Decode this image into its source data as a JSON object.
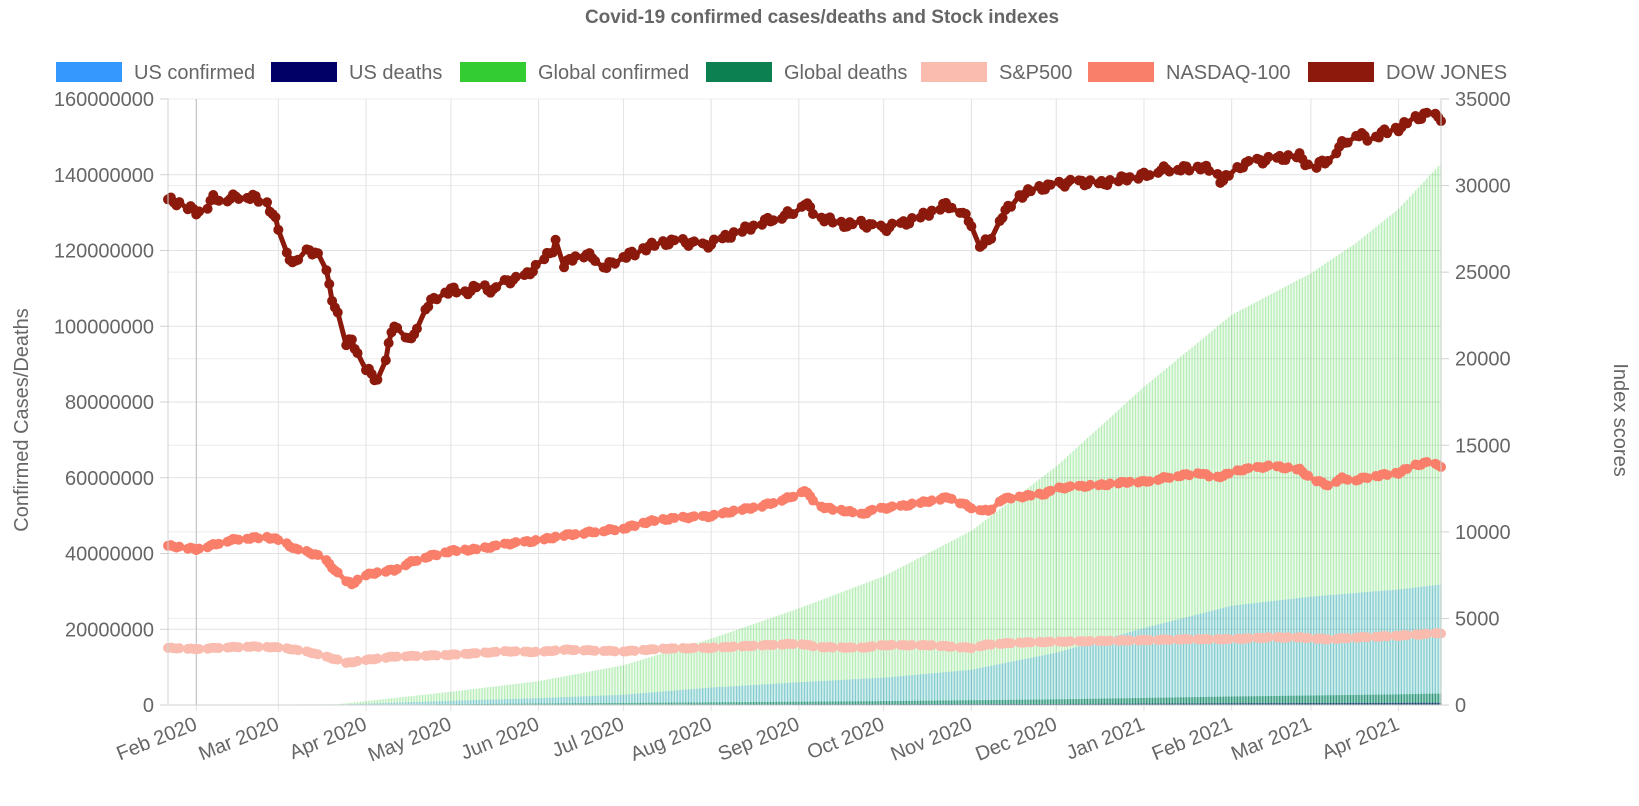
{
  "chart_data": {
    "type": "bar+line",
    "title": "Covid-19 confirmed cases/deaths and Stock indexes",
    "y_left": {
      "label": "Confirmed Cases/Deaths",
      "ylim": [
        0,
        160000000
      ],
      "ticks": [
        "0",
        "20000000",
        "40000000",
        "60000000",
        "80000000",
        "100000000",
        "120000000",
        "140000000",
        "160000000"
      ]
    },
    "y_right": {
      "label": "Index scores",
      "ylim": [
        0,
        35000
      ],
      "ticks": [
        "0",
        "5000",
        "10000",
        "15000",
        "20000",
        "25000",
        "30000",
        "35000"
      ]
    },
    "x": {
      "start_day": "2020-01-22",
      "end_day": "2021-04-16",
      "tick_labels": [
        "Feb 2020",
        "Mar 2020",
        "Apr 2020",
        "May 2020",
        "Jun 2020",
        "Jul 2020",
        "Aug 2020",
        "Sep 2020",
        "Oct 2020",
        "Nov 2020",
        "Dec 2020",
        "Jan 2021",
        "Feb 2021",
        "Mar 2021",
        "Apr 2021"
      ],
      "tick_days": [
        10,
        39,
        70,
        100,
        131,
        161,
        192,
        223,
        253,
        284,
        314,
        345,
        376,
        404,
        435
      ]
    },
    "legend": [
      {
        "label": "US confirmed",
        "color": "#3399ff"
      },
      {
        "label": "US deaths",
        "color": "#000066"
      },
      {
        "label": "Global confirmed",
        "color": "#33cc33"
      },
      {
        "label": "Global deaths",
        "color": "#0c8050"
      },
      {
        "label": "S&P500",
        "color": "#fbbcb0"
      },
      {
        "label": "NASDAQ-100",
        "color": "#fa7f6a"
      },
      {
        "label": "DOW JONES",
        "color": "#8b1a0c"
      }
    ],
    "series": [
      {
        "name": "Global confirmed",
        "kind": "bar",
        "axis": "left",
        "color": "#33cc33",
        "points": [
          [
            0,
            0
          ],
          [
            60,
            200000
          ],
          [
            100,
            3500000
          ],
          [
            131,
            6300000
          ],
          [
            161,
            10500000
          ],
          [
            192,
            17500000
          ],
          [
            223,
            25500000
          ],
          [
            253,
            34000000
          ],
          [
            284,
            46000000
          ],
          [
            314,
            63000000
          ],
          [
            345,
            84000000
          ],
          [
            376,
            103000000
          ],
          [
            404,
            114000000
          ],
          [
            420,
            122000000
          ],
          [
            435,
            131000000
          ],
          [
            450,
            143000000
          ]
        ]
      },
      {
        "name": "US confirmed",
        "kind": "bar",
        "axis": "left",
        "color": "#3399ff",
        "points": [
          [
            0,
            0
          ],
          [
            60,
            100000
          ],
          [
            100,
            1100000
          ],
          [
            131,
            1800000
          ],
          [
            161,
            2700000
          ],
          [
            192,
            4600000
          ],
          [
            223,
            6000000
          ],
          [
            253,
            7200000
          ],
          [
            284,
            9300000
          ],
          [
            314,
            13800000
          ],
          [
            345,
            20300000
          ],
          [
            376,
            26200000
          ],
          [
            404,
            28600000
          ],
          [
            435,
            30500000
          ],
          [
            450,
            31800000
          ]
        ]
      },
      {
        "name": "Global deaths",
        "kind": "bar",
        "axis": "left",
        "color": "#0c8050",
        "points": [
          [
            0,
            0
          ],
          [
            70,
            40000
          ],
          [
            131,
            380000
          ],
          [
            192,
            690000
          ],
          [
            253,
            1010000
          ],
          [
            314,
            1470000
          ],
          [
            345,
            1850000
          ],
          [
            376,
            2230000
          ],
          [
            435,
            2800000
          ],
          [
            450,
            3030000
          ]
        ]
      },
      {
        "name": "US deaths",
        "kind": "bar",
        "axis": "left",
        "color": "#000066",
        "points": [
          [
            0,
            0
          ],
          [
            70,
            3000
          ],
          [
            131,
            105000
          ],
          [
            192,
            155000
          ],
          [
            253,
            210000
          ],
          [
            314,
            270000
          ],
          [
            376,
            440000
          ],
          [
            450,
            570000
          ]
        ]
      },
      {
        "name": "S&P500",
        "kind": "line",
        "axis": "right",
        "color": "#fbbcb0",
        "points": [
          [
            0,
            3300
          ],
          [
            10,
            3230
          ],
          [
            20,
            3330
          ],
          [
            30,
            3380
          ],
          [
            40,
            3320
          ],
          [
            50,
            3050
          ],
          [
            60,
            2600
          ],
          [
            62,
            2400
          ],
          [
            70,
            2600
          ],
          [
            80,
            2800
          ],
          [
            100,
            2900
          ],
          [
            120,
            3100
          ],
          [
            131,
            3050
          ],
          [
            140,
            3200
          ],
          [
            161,
            3100
          ],
          [
            175,
            3250
          ],
          [
            192,
            3300
          ],
          [
            210,
            3450
          ],
          [
            223,
            3550
          ],
          [
            230,
            3350
          ],
          [
            245,
            3300
          ],
          [
            253,
            3450
          ],
          [
            270,
            3450
          ],
          [
            284,
            3300
          ],
          [
            290,
            3500
          ],
          [
            300,
            3600
          ],
          [
            314,
            3650
          ],
          [
            330,
            3700
          ],
          [
            345,
            3750
          ],
          [
            360,
            3800
          ],
          [
            376,
            3800
          ],
          [
            390,
            3900
          ],
          [
            400,
            3900
          ],
          [
            410,
            3800
          ],
          [
            420,
            3900
          ],
          [
            435,
            4000
          ],
          [
            450,
            4150
          ]
        ]
      },
      {
        "name": "NASDAQ-100",
        "kind": "line",
        "axis": "right",
        "color": "#fa7f6a",
        "points": [
          [
            0,
            9200
          ],
          [
            5,
            9100
          ],
          [
            10,
            9000
          ],
          [
            15,
            9200
          ],
          [
            20,
            9450
          ],
          [
            25,
            9600
          ],
          [
            30,
            9650
          ],
          [
            35,
            9700
          ],
          [
            40,
            9500
          ],
          [
            45,
            9000
          ],
          [
            50,
            8800
          ],
          [
            55,
            8500
          ],
          [
            60,
            7600
          ],
          [
            62,
            7200
          ],
          [
            65,
            7000
          ],
          [
            70,
            7500
          ],
          [
            75,
            7700
          ],
          [
            80,
            7800
          ],
          [
            85,
            8200
          ],
          [
            90,
            8500
          ],
          [
            100,
            8900
          ],
          [
            110,
            9000
          ],
          [
            120,
            9300
          ],
          [
            131,
            9500
          ],
          [
            140,
            9800
          ],
          [
            150,
            10000
          ],
          [
            161,
            10200
          ],
          [
            170,
            10600
          ],
          [
            180,
            10800
          ],
          [
            192,
            10900
          ],
          [
            200,
            11200
          ],
          [
            210,
            11500
          ],
          [
            220,
            12000
          ],
          [
            225,
            12400
          ],
          [
            230,
            11500
          ],
          [
            235,
            11300
          ],
          [
            240,
            11200
          ],
          [
            245,
            11000
          ],
          [
            250,
            11300
          ],
          [
            260,
            11500
          ],
          [
            270,
            11800
          ],
          [
            276,
            12000
          ],
          [
            280,
            11700
          ],
          [
            284,
            11400
          ],
          [
            290,
            11200
          ],
          [
            295,
            11900
          ],
          [
            300,
            12000
          ],
          [
            310,
            12200
          ],
          [
            314,
            12500
          ],
          [
            320,
            12600
          ],
          [
            330,
            12700
          ],
          [
            340,
            12900
          ],
          [
            345,
            12900
          ],
          [
            355,
            13200
          ],
          [
            365,
            13400
          ],
          [
            370,
            13100
          ],
          [
            376,
            13400
          ],
          [
            380,
            13600
          ],
          [
            390,
            13800
          ],
          [
            400,
            13600
          ],
          [
            404,
            13100
          ],
          [
            410,
            12700
          ],
          [
            415,
            13100
          ],
          [
            420,
            13000
          ],
          [
            425,
            13200
          ],
          [
            430,
            13300
          ],
          [
            435,
            13400
          ],
          [
            440,
            13800
          ],
          [
            445,
            14000
          ],
          [
            450,
            13800
          ]
        ]
      },
      {
        "name": "DOW JONES",
        "kind": "line",
        "axis": "right",
        "color": "#8b1a0c",
        "points": [
          [
            0,
            29200
          ],
          [
            5,
            28900
          ],
          [
            10,
            28500
          ],
          [
            13,
            28600
          ],
          [
            16,
            29300
          ],
          [
            20,
            29200
          ],
          [
            25,
            29400
          ],
          [
            30,
            29350
          ],
          [
            35,
            29000
          ],
          [
            38,
            28000
          ],
          [
            42,
            26000
          ],
          [
            45,
            25500
          ],
          [
            50,
            26300
          ],
          [
            55,
            25700
          ],
          [
            58,
            23500
          ],
          [
            60,
            22500
          ],
          [
            62,
            20500
          ],
          [
            65,
            21200
          ],
          [
            68,
            19700
          ],
          [
            72,
            19100
          ],
          [
            75,
            18600
          ],
          [
            78,
            20800
          ],
          [
            80,
            22000
          ],
          [
            83,
            21600
          ],
          [
            86,
            21000
          ],
          [
            90,
            22800
          ],
          [
            95,
            23600
          ],
          [
            100,
            24000
          ],
          [
            105,
            23800
          ],
          [
            110,
            24200
          ],
          [
            115,
            23900
          ],
          [
            120,
            24500
          ],
          [
            125,
            24600
          ],
          [
            131,
            25400
          ],
          [
            136,
            26300
          ],
          [
            138,
            27300
          ],
          [
            140,
            25400
          ],
          [
            145,
            26100
          ],
          [
            150,
            25900
          ],
          [
            155,
            25300
          ],
          [
            160,
            25900
          ],
          [
            165,
            26100
          ],
          [
            170,
            26500
          ],
          [
            180,
            26800
          ],
          [
            190,
            26500
          ],
          [
            200,
            27200
          ],
          [
            210,
            27900
          ],
          [
            220,
            28400
          ],
          [
            225,
            29000
          ],
          [
            230,
            28200
          ],
          [
            240,
            27700
          ],
          [
            245,
            27800
          ],
          [
            250,
            27600
          ],
          [
            253,
            27500
          ],
          [
            260,
            27800
          ],
          [
            265,
            28100
          ],
          [
            270,
            28500
          ],
          [
            275,
            28900
          ],
          [
            280,
            28600
          ],
          [
            284,
            27800
          ],
          [
            287,
            26600
          ],
          [
            290,
            26800
          ],
          [
            295,
            28300
          ],
          [
            300,
            29300
          ],
          [
            305,
            29700
          ],
          [
            310,
            29900
          ],
          [
            320,
            30200
          ],
          [
            330,
            30100
          ],
          [
            340,
            30500
          ],
          [
            345,
            30600
          ],
          [
            350,
            30900
          ],
          [
            355,
            31000
          ],
          [
            360,
            31000
          ],
          [
            365,
            31100
          ],
          [
            370,
            30800
          ],
          [
            372,
            30300
          ],
          [
            376,
            30600
          ],
          [
            380,
            31200
          ],
          [
            385,
            31400
          ],
          [
            390,
            31500
          ],
          [
            395,
            31600
          ],
          [
            400,
            31700
          ],
          [
            404,
            31000
          ],
          [
            410,
            31500
          ],
          [
            415,
            32400
          ],
          [
            420,
            33000
          ],
          [
            425,
            32700
          ],
          [
            430,
            33100
          ],
          [
            435,
            33300
          ],
          [
            440,
            33800
          ],
          [
            445,
            34100
          ],
          [
            450,
            33900
          ]
        ]
      }
    ]
  }
}
